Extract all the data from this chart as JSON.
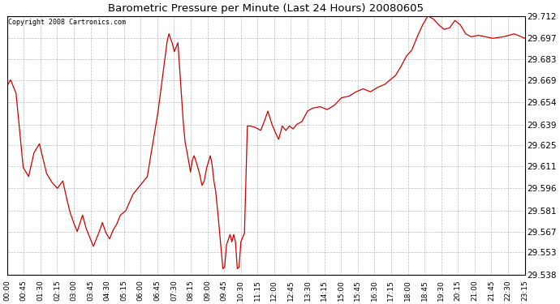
{
  "title": "Barometric Pressure per Minute (Last 24 Hours) 20080605",
  "copyright": "Copyright 2008 Cartronics.com",
  "line_color": "#cc0000",
  "background_color": "#ffffff",
  "plot_bg_color": "#ffffff",
  "grid_color": "#aaaaaa",
  "grid_style": "--",
  "ylim": [
    29.538,
    29.712
  ],
  "yticks": [
    29.538,
    29.553,
    29.567,
    29.581,
    29.596,
    29.611,
    29.625,
    29.639,
    29.654,
    29.669,
    29.683,
    29.697,
    29.712
  ],
  "xtick_labels": [
    "00:00",
    "00:45",
    "01:30",
    "02:15",
    "03:00",
    "03:45",
    "04:30",
    "05:15",
    "06:00",
    "06:45",
    "07:30",
    "08:15",
    "09:00",
    "09:45",
    "10:30",
    "11:15",
    "12:00",
    "12:45",
    "13:30",
    "14:15",
    "15:00",
    "15:45",
    "16:30",
    "17:15",
    "18:00",
    "18:45",
    "19:30",
    "20:15",
    "21:00",
    "21:45",
    "22:30",
    "23:15"
  ],
  "num_points": 1440,
  "keypoints_x": [
    0,
    10,
    25,
    45,
    60,
    75,
    90,
    110,
    125,
    140,
    155,
    165,
    175,
    185,
    195,
    210,
    220,
    230,
    240,
    255,
    265,
    275,
    285,
    295,
    305,
    315,
    330,
    350,
    370,
    390,
    420,
    445,
    450,
    460,
    465,
    475,
    490,
    495,
    500,
    505,
    510,
    515,
    520,
    527,
    535,
    542,
    548,
    555,
    565,
    570,
    575,
    580,
    585,
    590,
    595,
    600,
    605,
    610,
    620,
    625,
    630,
    635,
    640,
    645,
    650,
    660,
    668,
    675,
    690,
    705,
    715,
    725,
    735,
    745,
    755,
    765,
    775,
    785,
    795,
    805,
    820,
    835,
    850,
    870,
    890,
    910,
    930,
    950,
    970,
    990,
    1010,
    1030,
    1050,
    1065,
    1080,
    1095,
    1110,
    1125,
    1140,
    1155,
    1170,
    1185,
    1200,
    1215,
    1230,
    1245,
    1260,
    1275,
    1290,
    1310,
    1330,
    1350,
    1380,
    1410,
    1439
  ],
  "keypoints_y": [
    29.665,
    29.669,
    29.66,
    29.61,
    29.604,
    29.62,
    29.626,
    29.606,
    29.6,
    29.596,
    29.601,
    29.59,
    29.58,
    29.573,
    29.567,
    29.578,
    29.569,
    29.563,
    29.557,
    29.566,
    29.573,
    29.566,
    29.562,
    29.568,
    29.572,
    29.578,
    29.581,
    29.592,
    29.598,
    29.604,
    29.648,
    29.695,
    29.7,
    29.693,
    29.688,
    29.694,
    29.64,
    29.627,
    29.621,
    29.614,
    29.607,
    29.615,
    29.618,
    29.613,
    29.606,
    29.598,
    29.601,
    29.61,
    29.618,
    29.612,
    29.601,
    29.594,
    29.582,
    29.569,
    29.555,
    29.542,
    29.543,
    29.558,
    29.565,
    29.56,
    29.565,
    29.56,
    29.542,
    29.543,
    29.56,
    29.566,
    29.638,
    29.638,
    29.637,
    29.635,
    29.641,
    29.648,
    29.64,
    29.634,
    29.629,
    29.638,
    29.635,
    29.638,
    29.636,
    29.639,
    29.641,
    29.648,
    29.65,
    29.651,
    29.649,
    29.652,
    29.657,
    29.658,
    29.661,
    29.663,
    29.661,
    29.664,
    29.666,
    29.669,
    29.672,
    29.678,
    29.685,
    29.689,
    29.698,
    29.706,
    29.712,
    29.71,
    29.706,
    29.703,
    29.704,
    29.709,
    29.706,
    29.7,
    29.698,
    29.699,
    29.698,
    29.697,
    29.698,
    29.7,
    29.697
  ]
}
